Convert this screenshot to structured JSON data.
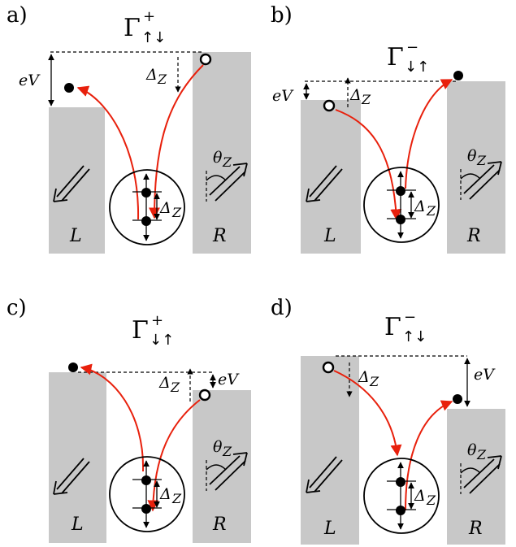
{
  "panels": [
    {
      "id": "a",
      "label": "a)",
      "gamma": "Γ",
      "gamma_sup": "+",
      "gamma_sub": "↑↓",
      "energy": "eV",
      "zeeman": "Δ",
      "zeeman_sub": "Z",
      "left_lead": "L",
      "right_lead": "R",
      "angle": "θ",
      "angle_sub": "Z"
    },
    {
      "id": "b",
      "label": "b)",
      "gamma": "Γ",
      "gamma_sup": "−",
      "gamma_sub": "↓↑",
      "energy": "eV",
      "zeeman": "Δ",
      "zeeman_sub": "Z",
      "left_lead": "L",
      "right_lead": "R",
      "angle": "θ",
      "angle_sub": "Z"
    },
    {
      "id": "c",
      "label": "c)",
      "gamma": "Γ",
      "gamma_sup": "+",
      "gamma_sub": "↓↑",
      "energy": "eV",
      "zeeman": "Δ",
      "zeeman_sub": "Z",
      "left_lead": "L",
      "right_lead": "R",
      "angle": "θ",
      "angle_sub": "Z"
    },
    {
      "id": "d",
      "label": "d)",
      "gamma": "Γ",
      "gamma_sup": "−",
      "gamma_sub": "↑↓",
      "energy": "eV",
      "zeeman": "Δ",
      "zeeman_sub": "Z",
      "left_lead": "L",
      "right_lead": "R",
      "angle": "θ",
      "angle_sub": "Z"
    }
  ],
  "colors": {
    "lead_fill": "#c8c8c8",
    "transfer_arrow": "#e8200c",
    "ink": "#000000"
  }
}
